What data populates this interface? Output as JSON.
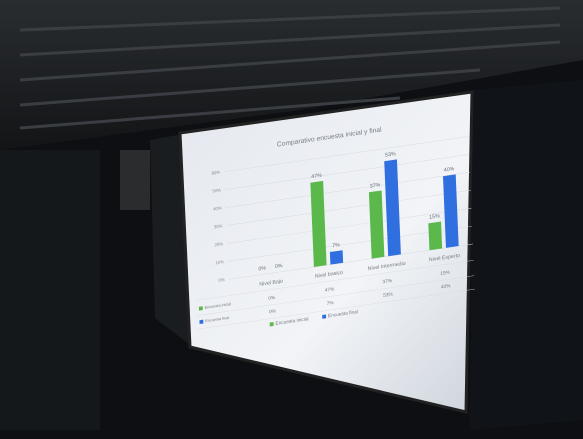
{
  "chart_data": {
    "type": "bar",
    "title": "Comparativo encuesta inicial y final",
    "categories": [
      "Nivel Bajo",
      "Nivel basico",
      "Nivel Intermedio",
      "Nivel Experto"
    ],
    "series": [
      {
        "name": "Encuesta inicial",
        "color": "#5bb84a",
        "values": [
          0,
          47,
          37,
          15
        ],
        "value_labels": [
          "0%",
          "47%",
          "37%",
          "15%"
        ]
      },
      {
        "name": "Encuesta final",
        "color": "#2f6fe0",
        "values": [
          0,
          7,
          53,
          40
        ],
        "value_labels": [
          "0%",
          "7%",
          "53%",
          "40%"
        ]
      }
    ],
    "ylim": [
      0,
      60
    ],
    "yticks": [
      {
        "value": 0,
        "label": "0%"
      },
      {
        "value": 10,
        "label": "10%"
      },
      {
        "value": 20,
        "label": "20%"
      },
      {
        "value": 30,
        "label": "30%"
      },
      {
        "value": 40,
        "label": "40%"
      },
      {
        "value": 50,
        "label": "50%"
      },
      {
        "value": 60,
        "label": "60%"
      }
    ],
    "grid": true
  }
}
